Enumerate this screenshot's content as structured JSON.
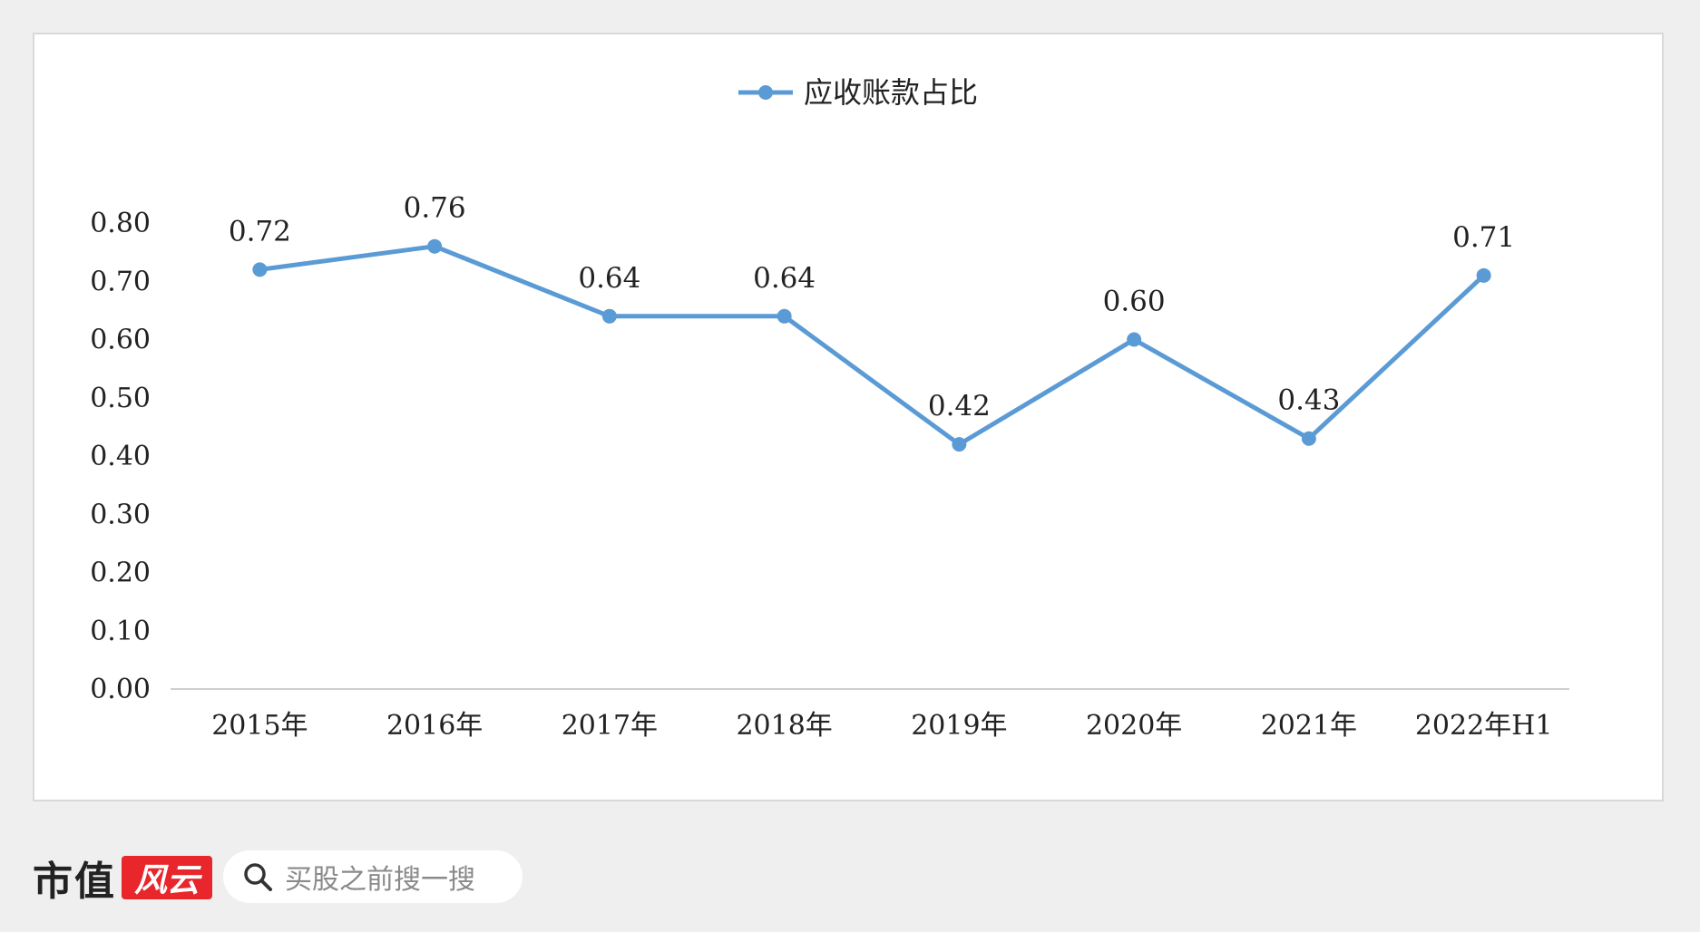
{
  "brand": {
    "name": "市值",
    "stamp": "风云"
  },
  "search": {
    "placeholder": "买股之前搜一搜",
    "icon": "search-icon"
  },
  "chart_data": {
    "type": "line",
    "categories": [
      "2015年",
      "2016年",
      "2017年",
      "2018年",
      "2019年",
      "2020年",
      "2021年",
      "2022年H1"
    ],
    "series": [
      {
        "name": "应收账款占比",
        "values": [
          0.72,
          0.76,
          0.64,
          0.64,
          0.42,
          0.6,
          0.43,
          0.71
        ],
        "labels": [
          "0.72",
          "0.76",
          "0.64",
          "0.64",
          "0.42",
          "0.60",
          "0.43",
          "0.71"
        ],
        "color": "#5b9bd5"
      }
    ],
    "yticks": [
      "0.00",
      "0.10",
      "0.20",
      "0.30",
      "0.40",
      "0.50",
      "0.60",
      "0.70",
      "0.80"
    ],
    "ylim": [
      0,
      0.8
    ],
    "grid": false,
    "legend": "top-center",
    "title": "",
    "xlabel": "",
    "ylabel": ""
  }
}
